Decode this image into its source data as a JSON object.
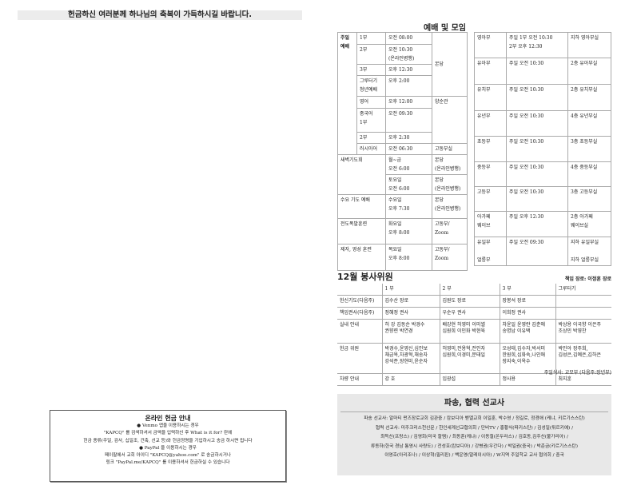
{
  "blessing": "헌금하신 여러분께 하나님의 축복이 가득하시길 바랍니다.",
  "online": {
    "title": "온라인 헌금 안내",
    "lines": [
      "● Venmo 앱을 이용하시는 경우",
      "\"KAPCQ\" 를 검색하셔서 금액을 입력하신 후 What is it for? 란에",
      "헌금 종류(주일, 감사, 십일조, 건축, 선교 등)와 헌금정명을 기입하시고 송금 하시면 됩니다",
      "● PayPal 을 이용하시는 경우",
      "페이팔에서 교회 아이디 \"KAPCQ@yahoo.com\" 로 송금하시거나",
      "링크 \"PayPal.me/KAPCQ\" 를 이용하셔서 헌금하실 수 있습니다"
    ]
  },
  "worship": {
    "title": "예배 및 모임",
    "sunday_label": "주일\n예배",
    "sunday": [
      {
        "name": "1부",
        "time": "오전 08:00"
      },
      {
        "name": "2부",
        "time": "오전 10:30\n(온라인병행)"
      },
      {
        "name": "3부",
        "time": "오후 12:30"
      },
      {
        "name": "그루터기\n청년예배",
        "time": "오후 2:00"
      },
      {
        "name": "영어",
        "time": "오후 12:00",
        "place": "양순관"
      },
      {
        "name": "중국어\n1부",
        "time": "오전 09:30"
      },
      {
        "name": "2부",
        "time": "오후  2:30"
      },
      {
        "name": "러시아어",
        "time": "오전 06:30",
        "place": "고동부실"
      }
    ],
    "sunday_main_place": "본당",
    "others": [
      {
        "name": "새벽기도회",
        "rows": [
          {
            "time": "월~금\n오전 6:00",
            "place": "본당\n(온라인병행)"
          },
          {
            "time": "토요일\n오전 6:00",
            "place": "본당\n(온라인병행)"
          }
        ]
      },
      {
        "name": "수요 기도 예배",
        "rows": [
          {
            "time": "수요일\n오후 7:30",
            "place": "본당\n(온라인병행)"
          }
        ]
      },
      {
        "name": "전도폭발훈련",
        "rows": [
          {
            "time": "화요일\n오후 8:00",
            "place": "고동부/\nZoom"
          }
        ]
      },
      {
        "name": "제자, 영성 훈련",
        "rows": [
          {
            "time": "목요일\n오후 8:00",
            "place": "고동부/\nZoom"
          }
        ]
      }
    ],
    "departments": [
      {
        "name": "영아부",
        "time": "주일 1부 오전 10:30\n       2부 오후 12:30",
        "place": "지하 영아부실"
      },
      {
        "name": "유아부",
        "time": "주일      오전 10:30",
        "place": "2층 유아부실"
      },
      {
        "name": "유치부",
        "time": "주일      오전 10:30",
        "place": "2층 유치부실"
      },
      {
        "name": "유년부",
        "time": "주일        오전 10:30",
        "place": "4층 유년부실"
      },
      {
        "name": "초등부",
        "time": "주일      오전 10:30",
        "place": "3층 초등부실"
      },
      {
        "name": "중등부",
        "time": "주일      오전 10:30",
        "place": "4층 중등부실"
      },
      {
        "name": "고등부",
        "time": "주일      오전 10:30",
        "place": "3층 고등부실"
      },
      {
        "name": "아가페\n웨이브",
        "time": "주일      오후 12:30",
        "place": "2층 아가페\n웨이브실"
      },
      {
        "name": "유일부\n\n얼룽부",
        "time": "주일      오전 09:30",
        "place": "지하 유일부실\n\n지하 얼룽부실"
      }
    ]
  },
  "volunteers": {
    "title": "12월 봉사위원",
    "elder": "책임 장로: 이정훈 장로",
    "headers": [
      "",
      "1 부",
      "2 부",
      "3 부",
      "그루터기"
    ],
    "rows": [
      [
        "헌신기도(다음주)",
        "김수산 장로",
        "김원도 장로",
        "장봉석 장로",
        ""
      ],
      [
        "책임권사(다음주)",
        "정혜정 권사",
        "우순우 권사",
        "이희정 권사",
        ""
      ],
      [
        "실내 안내",
        "허 강 김동순 박경수\n권향련 박연경",
        "배강현 허영미 이미썰\n심원희 이인화 박현육",
        "차윤일 윤영란 김춘애\n송명남 이유택",
        "박상용 이국향 이은주\n조상민 박영찬"
      ],
      [
        "헌금 위원",
        "박경수,윤영신,심인보\n채금옥,차광혁,채송자\n강석준,장현미,윤순자",
        "허영미,전용혁,전인자\n심원희,이경미,문태일",
        "오성태,김수자,박서미\n한원희,심화숙,나인애\n장지숙,이옥수",
        "박민아 장주희,\n김성은,김예은,김하은"
      ],
      [
        "차량 안내",
        "강 호",
        "임광섭",
        "정사용",
        "최지훈"
      ]
    ],
    "footer": "주일식사: 교모부 (다음주:장년부)"
  },
  "mission": {
    "title": "파송, 협력 선교사",
    "lines": [
      "파송 선교사: 알마티 펀즈장로교회 김관중 / 캄보디아 벧엘교회 이일훈, 박수영 / 정길로, 정경애 (케냐, 키르기스스탄)",
      "협력 선교사: 미주크리스천신문 / 한인세계선교협의회 / 단비TV / 홍황식(파키스탄) / 김성일(튀르키예) /",
      "최득신(프랑스) / 김영회(미국 할렘) / 최동훈(케냐) / 이동철(온두라스) / 김호동,김주신(불가리아) /",
      "류동하(한국 경남 통영시 사량도) / 전성호(캄보디아) / 강병권(우간다) / 박일권(중국) / 박춘금(키르기스스탄)",
      "이영호(아리조나) / 이상혁(필리핀) / 백운영(말레이시아) / W지역 주일학교 교사 협의회 / 중국"
    ]
  }
}
